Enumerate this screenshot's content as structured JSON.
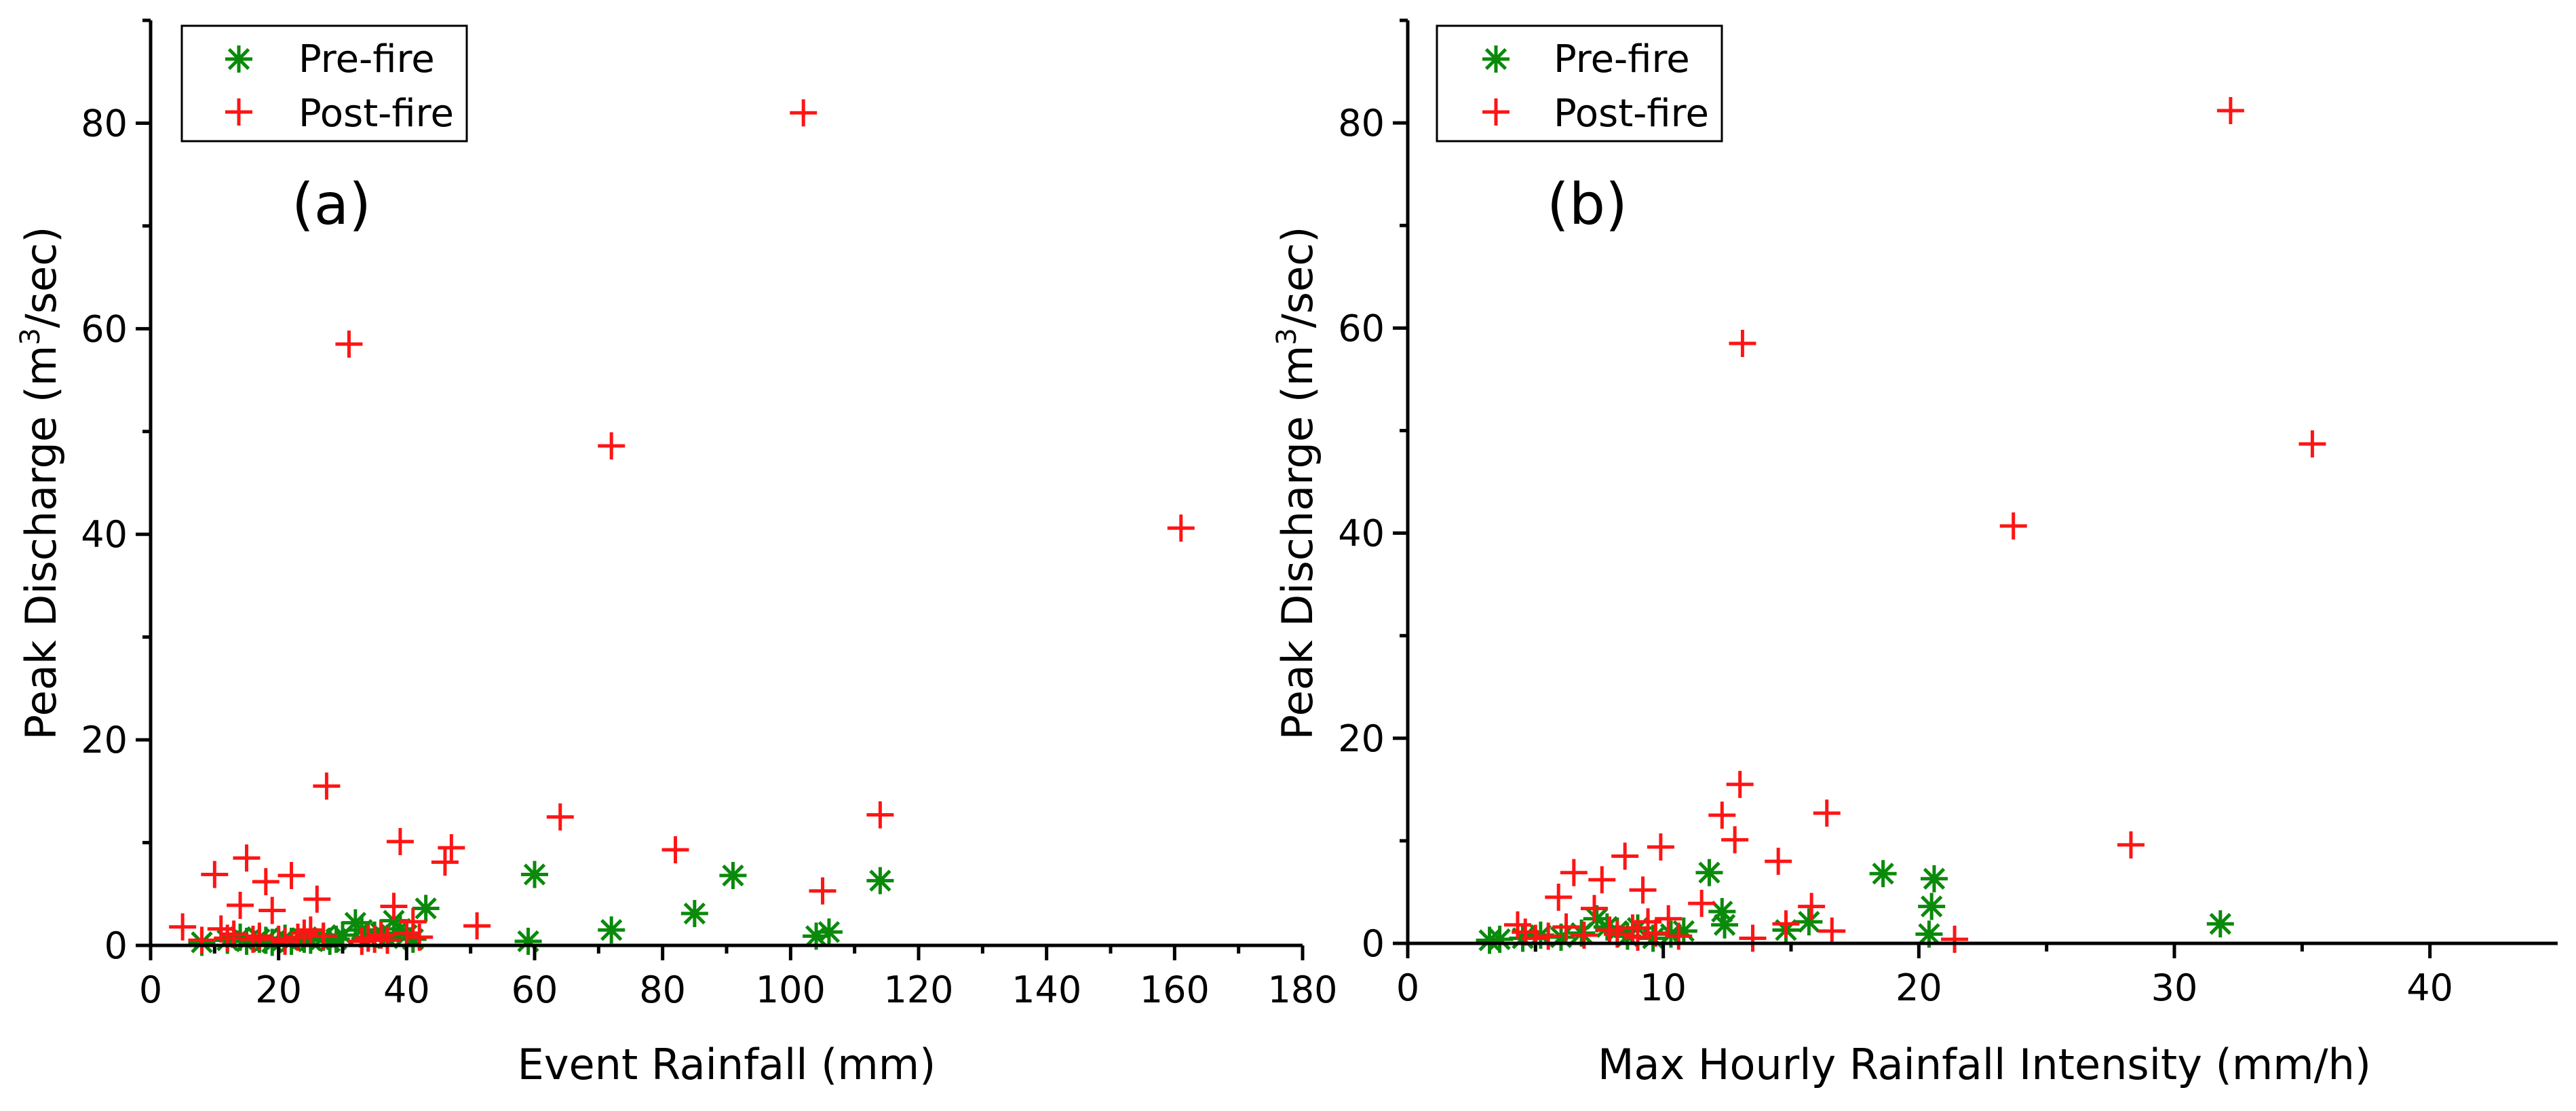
{
  "colors": {
    "pre_fire": "#0a8a0a",
    "post_fire": "#ff1414"
  },
  "chart_data": [
    {
      "type": "scatter",
      "panel_label": "(a)",
      "xlabel": "Event Rainfall (mm)",
      "ylabel": "Peak Discharge (m",
      "ylabel_sup": "3",
      "ylabel_suffix": "/sec)",
      "xlim": [
        0,
        180
      ],
      "ylim": [
        0,
        90
      ],
      "xticks": [
        0,
        20,
        40,
        60,
        80,
        100,
        120,
        140,
        160,
        180
      ],
      "yticks": [
        0,
        20,
        40,
        60,
        80
      ],
      "legend_position": "top-left",
      "series": [
        {
          "name": "Pre-fire",
          "marker": "asterisk",
          "points": [
            [
              8,
              0.3
            ],
            [
              12,
              0.5
            ],
            [
              14,
              0.8
            ],
            [
              15,
              0.4
            ],
            [
              17,
              0.6
            ],
            [
              18,
              0.5
            ],
            [
              19,
              0.3
            ],
            [
              21,
              0.7
            ],
            [
              22,
              0.4
            ],
            [
              24,
              0.6
            ],
            [
              25,
              0.5
            ],
            [
              27,
              0.8
            ],
            [
              28,
              0.4
            ],
            [
              29,
              0.6
            ],
            [
              30,
              1.0
            ],
            [
              32,
              2.2
            ],
            [
              33,
              1.5
            ],
            [
              34,
              0.8
            ],
            [
              35,
              1.0
            ],
            [
              36,
              1.2
            ],
            [
              37,
              0.7
            ],
            [
              38,
              2.4
            ],
            [
              39,
              1.6
            ],
            [
              40,
              1.0
            ],
            [
              41,
              0.6
            ],
            [
              43,
              3.6
            ],
            [
              59,
              0.4
            ],
            [
              60,
              6.9
            ],
            [
              72,
              1.5
            ],
            [
              85,
              3.1
            ],
            [
              91,
              6.8
            ],
            [
              104,
              0.9
            ],
            [
              106,
              1.3
            ],
            [
              114,
              6.3
            ]
          ]
        },
        {
          "name": "Post-fire",
          "marker": "plus",
          "points": [
            [
              5,
              1.8
            ],
            [
              8,
              0.5
            ],
            [
              10,
              6.9
            ],
            [
              11,
              1.6
            ],
            [
              12,
              0.7
            ],
            [
              13,
              1.1
            ],
            [
              14,
              3.9
            ],
            [
              15,
              8.5
            ],
            [
              16,
              0.6
            ],
            [
              17,
              0.9
            ],
            [
              18,
              6.2
            ],
            [
              19,
              3.4
            ],
            [
              20,
              0.6
            ],
            [
              21,
              0.4
            ],
            [
              22,
              6.8
            ],
            [
              23,
              0.8
            ],
            [
              24,
              1.2
            ],
            [
              25,
              1.5
            ],
            [
              26,
              4.5
            ],
            [
              27,
              0.9
            ],
            [
              27.5,
              15.5
            ],
            [
              31,
              58.5
            ],
            [
              33,
              0.4
            ],
            [
              34,
              0.7
            ],
            [
              35,
              0.6
            ],
            [
              36,
              1.0
            ],
            [
              37,
              0.5
            ],
            [
              38,
              3.8
            ],
            [
              39,
              10.1
            ],
            [
              40,
              1.2
            ],
            [
              41,
              2.3
            ],
            [
              42,
              0.8
            ],
            [
              46,
              8.1
            ],
            [
              47,
              9.5
            ],
            [
              51,
              1.9
            ],
            [
              64,
              12.5
            ],
            [
              72,
              48.6
            ],
            [
              82,
              9.3
            ],
            [
              102,
              81.0
            ],
            [
              105,
              5.3
            ],
            [
              114,
              12.7
            ],
            [
              161,
              40.6
            ]
          ]
        }
      ]
    },
    {
      "type": "scatter",
      "panel_label": "(b)",
      "xlabel": "Max Hourly Rainfall Intensity (mm/h)",
      "ylabel": "Peak Discharge (m",
      "ylabel_sup": "3",
      "ylabel_suffix": "/sec)",
      "xlim": [
        0,
        45
      ],
      "ylim": [
        0,
        90
      ],
      "xticks": [
        0,
        10,
        20,
        30,
        40
      ],
      "yticks": [
        0,
        20,
        40,
        60,
        80
      ],
      "legend_position": "top-left",
      "series": [
        {
          "name": "Pre-fire",
          "marker": "asterisk",
          "points": [
            [
              3.2,
              0.3
            ],
            [
              3.6,
              0.4
            ],
            [
              4.5,
              0.5
            ],
            [
              5.2,
              0.8
            ],
            [
              6.0,
              0.6
            ],
            [
              6.8,
              1.0
            ],
            [
              7.4,
              2.4
            ],
            [
              7.8,
              1.6
            ],
            [
              8.2,
              1.2
            ],
            [
              8.6,
              0.7
            ],
            [
              9.0,
              1.5
            ],
            [
              9.6,
              0.5
            ],
            [
              10.3,
              0.9
            ],
            [
              10.8,
              1.2
            ],
            [
              11.8,
              6.9
            ],
            [
              12.3,
              3.1
            ],
            [
              12.4,
              1.8
            ],
            [
              14.8,
              1.3
            ],
            [
              15.7,
              2.1
            ],
            [
              18.6,
              6.8
            ],
            [
              20.4,
              0.9
            ],
            [
              20.5,
              3.6
            ],
            [
              20.6,
              6.3
            ],
            [
              31.8,
              1.9
            ]
          ]
        },
        {
          "name": "Post-fire",
          "marker": "plus",
          "points": [
            [
              4.3,
              1.8
            ],
            [
              4.6,
              1.1
            ],
            [
              5.0,
              0.5
            ],
            [
              5.5,
              0.7
            ],
            [
              5.9,
              4.5
            ],
            [
              6.2,
              1.6
            ],
            [
              6.5,
              6.9
            ],
            [
              6.9,
              0.8
            ],
            [
              7.3,
              3.4
            ],
            [
              7.6,
              6.2
            ],
            [
              7.9,
              1.3
            ],
            [
              8.2,
              0.9
            ],
            [
              8.5,
              8.5
            ],
            [
              8.8,
              1.5
            ],
            [
              9.0,
              0.6
            ],
            [
              9.2,
              5.2
            ],
            [
              9.4,
              2.1
            ],
            [
              9.7,
              1.0
            ],
            [
              9.9,
              9.4
            ],
            [
              10.2,
              2.4
            ],
            [
              10.6,
              0.7
            ],
            [
              11.5,
              3.9
            ],
            [
              12.3,
              12.5
            ],
            [
              12.8,
              10.1
            ],
            [
              13.0,
              15.5
            ],
            [
              13.1,
              58.5
            ],
            [
              13.5,
              0.5
            ],
            [
              14.5,
              8.0
            ],
            [
              14.8,
              1.9
            ],
            [
              15.8,
              3.6
            ],
            [
              16.4,
              12.7
            ],
            [
              16.6,
              1.2
            ],
            [
              21.4,
              0.4
            ],
            [
              23.7,
              40.7
            ],
            [
              28.3,
              9.6
            ],
            [
              32.2,
              81.2
            ],
            [
              35.4,
              48.7
            ]
          ]
        }
      ]
    }
  ]
}
